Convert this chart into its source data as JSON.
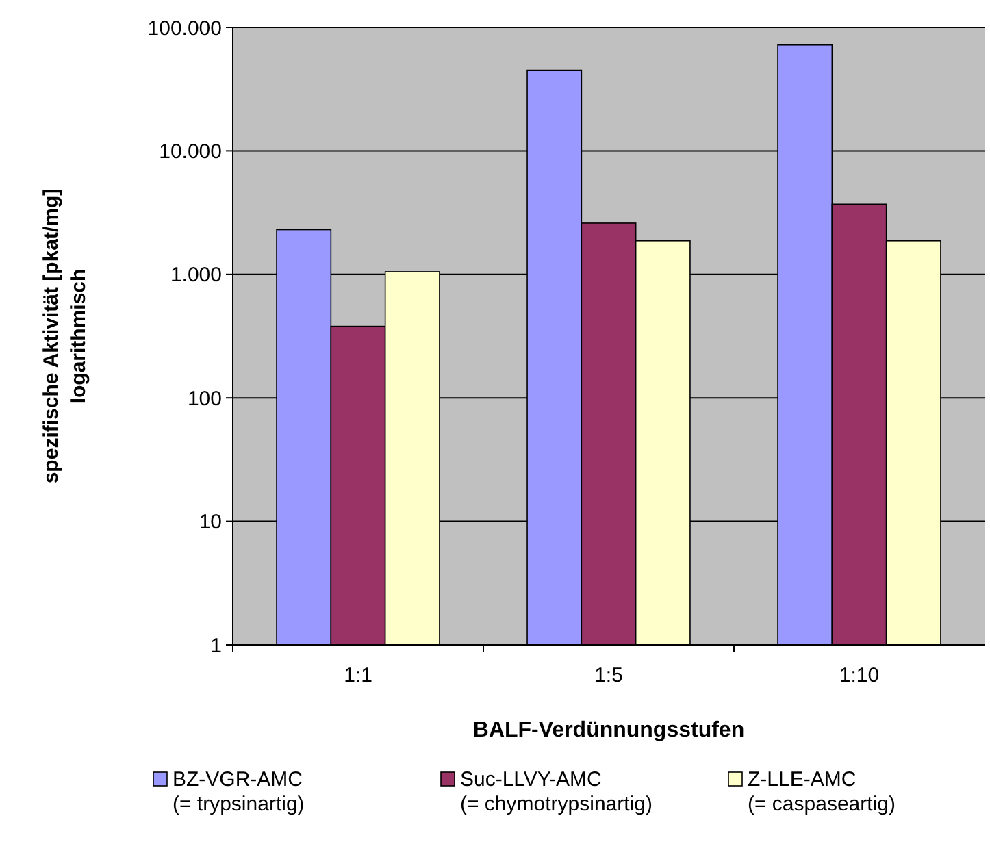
{
  "chart_data": {
    "type": "bar",
    "xlabel": "BALF-Verdünnungsstufen",
    "ylabel": "spezifische Aktivität [pkat/mg]\nlogarithmisch",
    "categories": [
      "1:1",
      "1:5",
      "1:10"
    ],
    "series": [
      {
        "name": "BZ-VGR-AMC\n(= trypsinartig)",
        "color": "#9999ff",
        "values": [
          2300,
          45000,
          72000
        ]
      },
      {
        "name": "Suc-LLVY-AMC\n(= chymotrypsinartig)",
        "color": "#993366",
        "values": [
          380,
          2600,
          3700
        ]
      },
      {
        "name": "Z-LLE-AMC\n(= caspaseartig)",
        "color": "#ffffcc",
        "values": [
          1050,
          1870,
          1870
        ]
      }
    ],
    "log": true,
    "ylim": [
      1,
      100000
    ],
    "yticks": [
      1,
      10,
      100,
      {
        "value": 1000,
        "label": "1.000"
      },
      {
        "value": 10000,
        "label": "10.000"
      },
      {
        "value": 100000,
        "label": "100.000"
      }
    ],
    "grid": "y",
    "legend": "bottom"
  }
}
